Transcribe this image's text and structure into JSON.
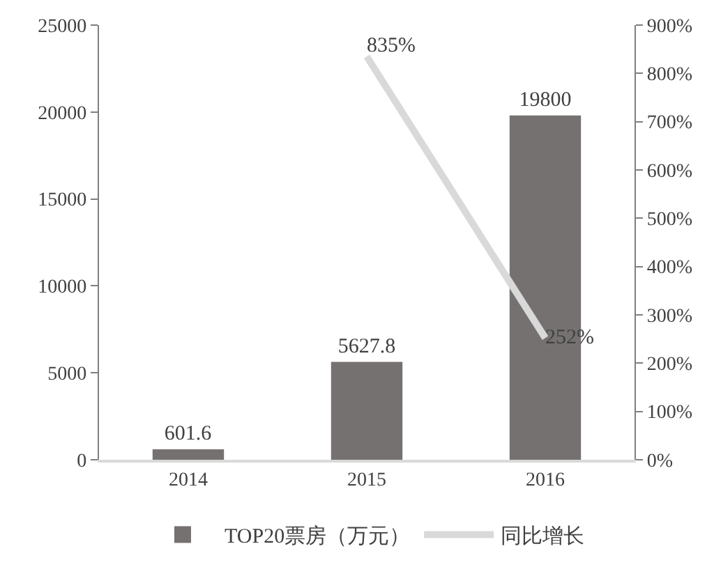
{
  "chart_data": {
    "type": "bar",
    "categories": [
      "2014",
      "2015",
      "2016"
    ],
    "series": [
      {
        "name": "TOP20票房（万元）",
        "color": "#767171",
        "values": [
          601.6,
          5627.8,
          19800
        ],
        "value_labels": [
          "601.6",
          "5627.8",
          "19800"
        ]
      },
      {
        "name": "同比增长",
        "type": "line",
        "axis": "y2",
        "color": "#d9d9d9",
        "values": [
          null,
          835,
          252
        ],
        "value_labels": [
          null,
          "835%",
          "252%"
        ]
      }
    ],
    "ylim": [
      0,
      25000
    ],
    "yticks": [
      0,
      5000,
      10000,
      15000,
      20000,
      25000
    ],
    "y2lim": [
      0,
      900
    ],
    "y2ticks": [
      {
        "value": 0,
        "label": "0%"
      },
      {
        "value": 100,
        "label": "100%"
      },
      {
        "value": 200,
        "label": "200%"
      },
      {
        "value": 300,
        "label": "300%"
      },
      {
        "value": 400,
        "label": "400%"
      },
      {
        "value": 500,
        "label": "500%"
      },
      {
        "value": 600,
        "label": "600%"
      },
      {
        "value": 700,
        "label": "700%"
      },
      {
        "value": 800,
        "label": "800%"
      },
      {
        "value": 900,
        "label": "900%"
      }
    ],
    "legend": "bottom",
    "grid": false,
    "marker": "none",
    "line_style": "solid"
  }
}
